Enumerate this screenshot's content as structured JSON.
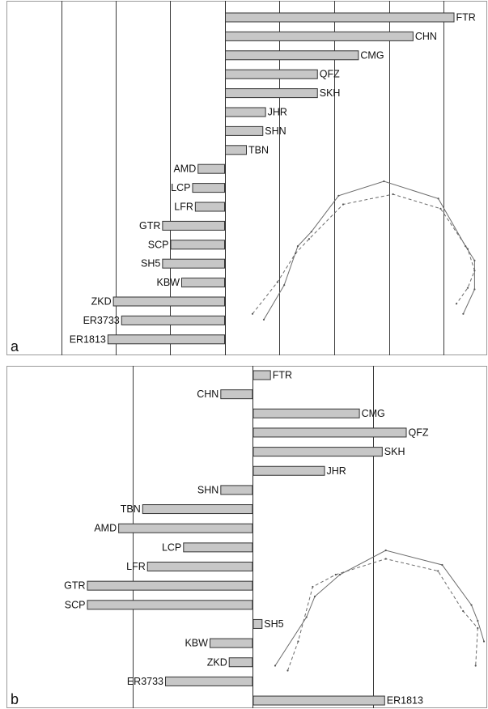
{
  "chart_data": [
    {
      "type": "bar",
      "orientation": "horizontal",
      "panel_label": "a",
      "categories": [
        "FTR",
        "CHN",
        "CMG",
        "QFZ",
        "SKH",
        "JHR",
        "SHN",
        "TBN",
        "AMD",
        "LCP",
        "LFR",
        "GTR",
        "SCP",
        "SH5",
        "KBW",
        "ZKD",
        "ER3733",
        "ER1813"
      ],
      "values": [
        4.2,
        3.45,
        2.45,
        1.7,
        1.7,
        0.75,
        0.7,
        0.4,
        -0.5,
        -0.6,
        -0.55,
        -1.15,
        -1.0,
        -1.15,
        -0.8,
        -2.05,
        -1.9,
        -2.15
      ],
      "xlim": [
        -4,
        4.8
      ],
      "xgrid": [
        -3,
        -2,
        -1,
        0,
        1,
        2,
        3,
        4
      ],
      "grid": true,
      "inset": {
        "type": "outline-comparison",
        "series": [
          {
            "style": "solid",
            "x": [
              0.05,
              0.14,
              0.2,
              0.26,
              0.38,
              0.58,
              0.82,
              0.94,
              0.98,
              0.98,
              0.93
            ],
            "y": [
              0.96,
              0.72,
              0.45,
              0.35,
              0.1,
              0.0,
              0.12,
              0.45,
              0.55,
              0.75,
              0.92
            ]
          },
          {
            "style": "dashed",
            "x": [
              0.0,
              0.11,
              0.19,
              0.25,
              0.4,
              0.62,
              0.83,
              0.95,
              0.98,
              0.95,
              0.9
            ],
            "y": [
              0.92,
              0.7,
              0.5,
              0.4,
              0.16,
              0.09,
              0.19,
              0.47,
              0.62,
              0.74,
              0.85
            ]
          }
        ]
      }
    },
    {
      "type": "bar",
      "orientation": "horizontal",
      "panel_label": "b",
      "categories": [
        "FTR",
        "CHN",
        "CMG",
        "QFZ",
        "SKH",
        "JHR",
        "SHN",
        "TBN",
        "AMD",
        "LCP",
        "LFR",
        "GTR",
        "SCP",
        "SH5",
        "KBW",
        "ZKD",
        "ER3733",
        "ER1813"
      ],
      "values": [
        0.15,
        -0.27,
        0.89,
        1.28,
        1.08,
        0.6,
        -0.27,
        -0.92,
        -1.12,
        -0.58,
        -0.88,
        -1.38,
        -1.38,
        0.08,
        -0.36,
        -0.2,
        -0.73,
        1.1
      ],
      "xlim": [
        -2.05,
        1.95
      ],
      "xgrid": [
        -1,
        0,
        1
      ],
      "grid": true,
      "inset": {
        "type": "outline-comparison",
        "series": [
          {
            "style": "solid",
            "x": [
              0.0,
              0.15,
              0.19,
              0.31,
              0.53,
              0.8,
              0.94,
              0.97,
              1.0
            ],
            "y": [
              0.95,
              0.55,
              0.38,
              0.2,
              0.0,
              0.12,
              0.45,
              0.58,
              0.75
            ]
          },
          {
            "style": "dashed",
            "x": [
              0.06,
              0.11,
              0.18,
              0.29,
              0.53,
              0.78,
              0.9,
              0.97,
              0.96
            ],
            "y": [
              0.99,
              0.75,
              0.3,
              0.2,
              0.07,
              0.17,
              0.5,
              0.64,
              0.95
            ]
          }
        ]
      }
    }
  ]
}
